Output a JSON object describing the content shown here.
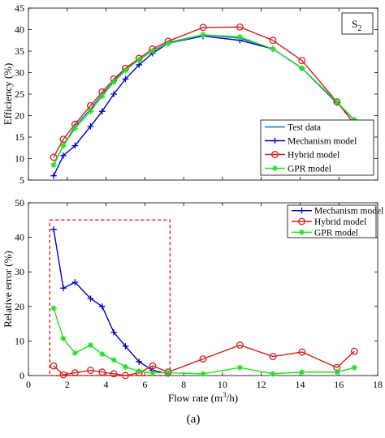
{
  "figure": {
    "caption": "(a)"
  },
  "chart_data": [
    {
      "type": "line",
      "annotation": "S",
      "annotation_sub": "2",
      "ylabel": "Efficiency (%)",
      "xlabel": "",
      "xlim": [
        0,
        18
      ],
      "ylim": [
        5,
        45
      ],
      "xticks": [
        0,
        2,
        4,
        6,
        8,
        10,
        12,
        14,
        16,
        18
      ],
      "yticks": [
        5,
        10,
        15,
        20,
        25,
        30,
        35,
        40,
        45
      ],
      "show_x_tick_labels": false,
      "legend_position": "bottom-right",
      "series": [
        {
          "name": "Test data",
          "color": "#0072BD",
          "marker": "none",
          "x": [
            1.3,
            1.8,
            2.4,
            3.2,
            3.8,
            4.4,
            5.0,
            5.7,
            6.4,
            7.2,
            9.0,
            10.9,
            12.6,
            14.1,
            15.9,
            16.8
          ],
          "y": [
            8.5,
            13.0,
            17.5,
            21.5,
            25.0,
            28.0,
            31.0,
            33.0,
            35.0,
            37.0,
            38.8,
            38.0,
            35.5,
            31.0,
            23.0,
            19.0
          ]
        },
        {
          "name": "Mechanism model",
          "color": "#0000CC",
          "marker": "plus",
          "x": [
            1.3,
            1.8,
            2.4,
            3.2,
            3.8,
            4.4,
            5.0,
            5.7,
            6.4,
            7.2,
            9.0,
            10.9,
            12.6,
            14.1,
            15.9,
            16.8
          ],
          "y": [
            6.0,
            10.7,
            13.0,
            17.5,
            21.0,
            25.0,
            28.5,
            31.8,
            34.5,
            36.8,
            38.5,
            37.5,
            35.5,
            31.0,
            23.0,
            19.0
          ]
        },
        {
          "name": "Hybrid model",
          "color": "#D62020",
          "marker": "circle",
          "x": [
            1.3,
            1.8,
            2.4,
            3.2,
            3.8,
            4.4,
            5.0,
            5.7,
            6.4,
            7.2,
            9.0,
            10.9,
            12.6,
            14.1,
            15.9,
            16.8
          ],
          "y": [
            10.3,
            14.5,
            18.0,
            22.3,
            25.5,
            28.5,
            31.0,
            33.3,
            35.5,
            37.3,
            40.5,
            40.6,
            37.5,
            32.8,
            23.2,
            18.0
          ]
        },
        {
          "name": "GPR model",
          "color": "#22E022",
          "marker": "star",
          "x": [
            1.3,
            1.8,
            2.4,
            3.2,
            3.8,
            4.4,
            5.0,
            5.7,
            6.4,
            7.2,
            9.0,
            10.9,
            12.6,
            14.1,
            15.9,
            16.8
          ],
          "y": [
            8.5,
            13.0,
            17.0,
            21.0,
            24.5,
            27.8,
            30.5,
            33.0,
            35.0,
            36.8,
            38.8,
            38.3,
            35.5,
            31.0,
            23.2,
            19.0
          ]
        }
      ]
    },
    {
      "type": "line",
      "ylabel": "Relative error (%)",
      "xlabel": "Flow rate (m",
      "xlabel_sup": "3",
      "xlabel_tail": "/h)",
      "xlim": [
        0,
        18
      ],
      "ylim": [
        0,
        50
      ],
      "xticks": [
        0,
        2,
        4,
        6,
        8,
        10,
        12,
        14,
        16,
        18
      ],
      "yticks": [
        0,
        10,
        20,
        30,
        40,
        50
      ],
      "show_x_tick_labels": true,
      "legend_position": "top-right",
      "highlight_box": {
        "x": [
          1.1,
          7.3
        ],
        "y": [
          0,
          45
        ],
        "color": "#E02020",
        "style": "dashed"
      },
      "series": [
        {
          "name": "Mechanism model",
          "color": "#0000CC",
          "marker": "plus",
          "x": [
            1.3,
            1.8,
            2.4,
            3.2,
            3.8,
            4.4,
            5.0,
            5.7,
            6.4,
            7.2
          ],
          "y": [
            42.3,
            25.3,
            27.0,
            22.3,
            20.0,
            12.5,
            8.5,
            4.0,
            1.5,
            0.5
          ]
        },
        {
          "name": "Hybrid model",
          "color": "#D62020",
          "marker": "circle",
          "x": [
            1.3,
            1.8,
            2.4,
            3.2,
            3.8,
            4.4,
            5.0,
            5.7,
            6.4,
            7.2,
            9.0,
            10.9,
            12.6,
            14.1,
            15.9,
            16.8
          ],
          "y": [
            2.8,
            0.2,
            0.8,
            1.5,
            1.0,
            0.5,
            0.0,
            0.8,
            2.8,
            1.0,
            4.8,
            8.8,
            5.5,
            6.8,
            2.3,
            7.0
          ]
        },
        {
          "name": "GPR model",
          "color": "#22E022",
          "marker": "star",
          "x": [
            1.3,
            1.8,
            2.4,
            3.2,
            3.8,
            4.4,
            5.0,
            5.7,
            6.4,
            7.2,
            9.0,
            10.9,
            12.6,
            14.1,
            15.9,
            16.8
          ],
          "y": [
            19.5,
            10.7,
            6.5,
            8.8,
            6.2,
            4.5,
            2.5,
            1.2,
            0.8,
            0.8,
            0.5,
            2.3,
            0.5,
            1.0,
            1.0,
            2.3
          ]
        }
      ]
    }
  ]
}
